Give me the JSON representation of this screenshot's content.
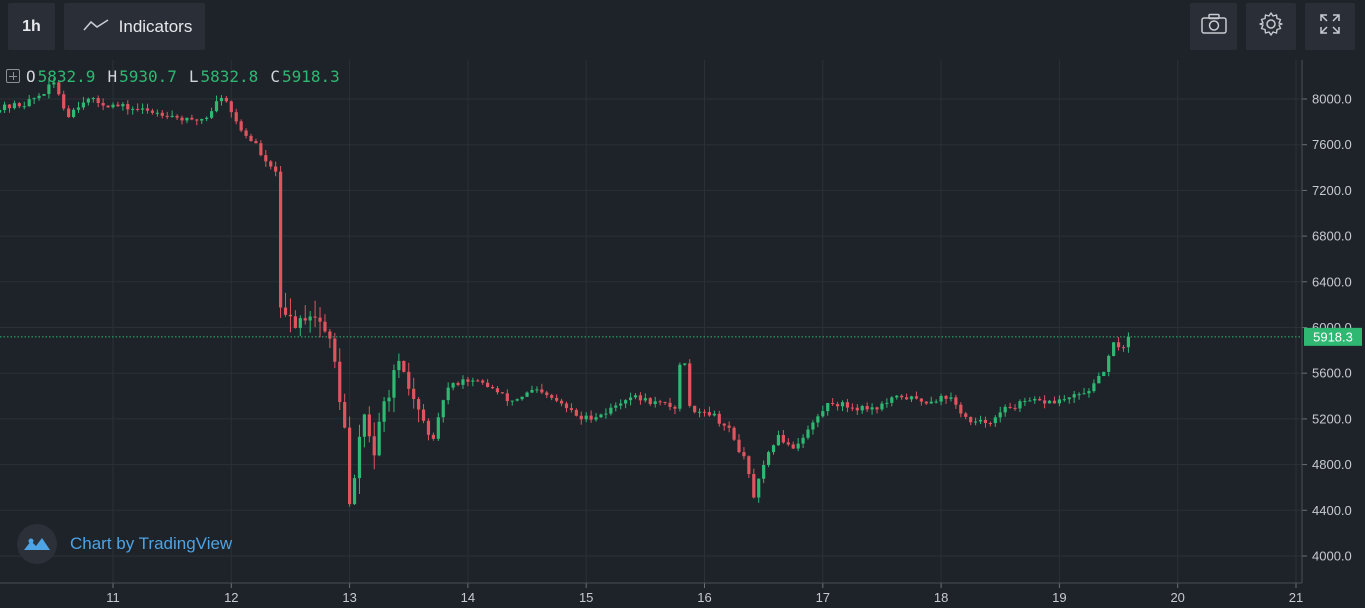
{
  "toolbar": {
    "interval_label": "1h",
    "indicators_label": "Indicators",
    "icons": [
      "line-chart-icon",
      "camera-icon",
      "gear-icon",
      "fullscreen-icon"
    ]
  },
  "legend": {
    "open_key": "O",
    "open": "5832.9",
    "high_key": "H",
    "high": "5930.7",
    "low_key": "L",
    "low": "5832.8",
    "close_key": "C",
    "close": "5918.3"
  },
  "watermark": {
    "text": "Chart by TradingView"
  },
  "colors": {
    "background": "#1e2329",
    "grid": "#2a3038",
    "up": "#2eb872",
    "down": "#e0545f",
    "price_line": "#2eb872",
    "watermark_text": "#4da3e3"
  },
  "chart_data": {
    "type": "candlestick",
    "interval": "1h",
    "x_tick_labels": [
      "11",
      "12",
      "13",
      "14",
      "15",
      "16",
      "17",
      "18",
      "19",
      "20",
      "21"
    ],
    "x_range_days": [
      10.0,
      21.05
    ],
    "y_tick_labels": [
      "4000.0",
      "4400.0",
      "4800.0",
      "5200.0",
      "5600.0",
      "6000.0",
      "6400.0",
      "6800.0",
      "7200.0",
      "7600.0",
      "8000.0"
    ],
    "ylim": [
      3760,
      8330
    ],
    "grid": true,
    "last_price": 5918.3,
    "last_price_label": "5918.3",
    "price_path_keypoints": [
      [
        10.0,
        7900
      ],
      [
        10.3,
        7960
      ],
      [
        10.45,
        8050
      ],
      [
        10.55,
        8150
      ],
      [
        10.65,
        7850
      ],
      [
        10.8,
        8000
      ],
      [
        11.0,
        7950
      ],
      [
        11.3,
        7900
      ],
      [
        11.5,
        7870
      ],
      [
        11.7,
        7800
      ],
      [
        11.85,
        7850
      ],
      [
        11.92,
        8000
      ],
      [
        12.0,
        8000
      ],
      [
        12.1,
        7750
      ],
      [
        12.25,
        7600
      ],
      [
        12.35,
        7400
      ],
      [
        12.42,
        7380
      ],
      [
        12.45,
        6100
      ],
      [
        12.6,
        6050
      ],
      [
        12.7,
        6150
      ],
      [
        12.8,
        6050
      ],
      [
        12.9,
        5800
      ],
      [
        13.0,
        5100
      ],
      [
        13.05,
        4300
      ],
      [
        13.15,
        5300
      ],
      [
        13.25,
        4900
      ],
      [
        13.35,
        5400
      ],
      [
        13.45,
        5650
      ],
      [
        13.55,
        5450
      ],
      [
        13.65,
        5200
      ],
      [
        13.75,
        5000
      ],
      [
        13.85,
        5450
      ],
      [
        14.0,
        5550
      ],
      [
        14.2,
        5500
      ],
      [
        14.4,
        5350
      ],
      [
        14.6,
        5450
      ],
      [
        14.8,
        5350
      ],
      [
        15.0,
        5200
      ],
      [
        15.2,
        5250
      ],
      [
        15.4,
        5400
      ],
      [
        15.6,
        5350
      ],
      [
        15.8,
        5300
      ],
      [
        15.86,
        5950
      ],
      [
        15.9,
        5300
      ],
      [
        16.1,
        5250
      ],
      [
        16.25,
        5100
      ],
      [
        16.4,
        4800
      ],
      [
        16.45,
        4500
      ],
      [
        16.55,
        4800
      ],
      [
        16.65,
        5050
      ],
      [
        16.8,
        4950
      ],
      [
        16.95,
        5150
      ],
      [
        17.1,
        5350
      ],
      [
        17.3,
        5300
      ],
      [
        17.5,
        5300
      ],
      [
        17.7,
        5400
      ],
      [
        17.9,
        5350
      ],
      [
        18.1,
        5400
      ],
      [
        18.3,
        5150
      ],
      [
        18.5,
        5200
      ],
      [
        18.6,
        5300
      ],
      [
        18.8,
        5350
      ],
      [
        19.0,
        5350
      ],
      [
        19.2,
        5400
      ],
      [
        19.35,
        5500
      ],
      [
        19.45,
        5700
      ],
      [
        19.5,
        5850
      ],
      [
        19.58,
        5832.9
      ],
      [
        19.62,
        5918.3
      ]
    ]
  }
}
